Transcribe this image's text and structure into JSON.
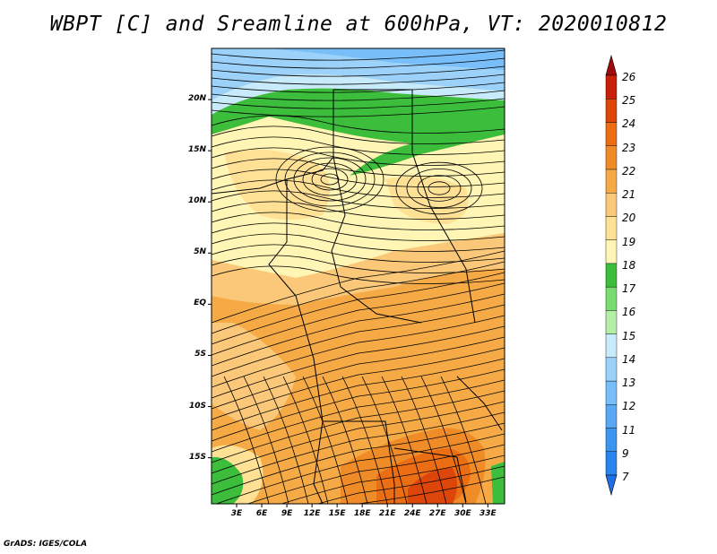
{
  "title": "WBPT [C] and Sreamline at 600hPa, VT: 2020010812",
  "footer": "GrADS: IGES/COLA",
  "map": {
    "lat_labels": [
      "20N",
      "15N",
      "10N",
      "5N",
      "EQ",
      "5S",
      "10S",
      "15S"
    ],
    "lat_values": [
      20,
      15,
      10,
      5,
      0,
      -5,
      -10,
      -15
    ],
    "lon_labels": [
      "3E",
      "6E",
      "9E",
      "12E",
      "15E",
      "18E",
      "21E",
      "24E",
      "27E",
      "30E",
      "33E"
    ],
    "lon_values": [
      3,
      6,
      9,
      12,
      15,
      18,
      21,
      24,
      27,
      30,
      33
    ],
    "lon_range": [
      0,
      35
    ],
    "lat_range": [
      -19.5,
      25
    ]
  },
  "colorbar": {
    "labels": [
      "7",
      "9",
      "11",
      "12",
      "13",
      "14",
      "15",
      "16",
      "17",
      "18",
      "19",
      "20",
      "21",
      "22",
      "23",
      "24",
      "25",
      "26"
    ],
    "colors": [
      "#1e6ee6",
      "#2a84ee",
      "#3c96f0",
      "#5aa8f4",
      "#78bef8",
      "#9cd2fa",
      "#c8ebfb",
      "#b4eea8",
      "#78dc70",
      "#3cbe3c",
      "#fff5b4",
      "#ffe196",
      "#fac878",
      "#f5aa46",
      "#f08c28",
      "#eb6e14",
      "#dc460a",
      "#c81e0a",
      "#a00a0a"
    ],
    "min_arrow_color": "#1e6ee6",
    "max_arrow_color": "#a00a0a"
  },
  "field_colors": {
    "blue": "#9cd2fa",
    "lightblue": "#c8ebfb",
    "lightgreen": "#b4eea8",
    "green": "#3cbe3c",
    "yellow": "#fff5b4",
    "lightorange": "#ffe196",
    "orange": "#f5aa46",
    "deeporange": "#f08c28",
    "red": "#dc460a"
  }
}
